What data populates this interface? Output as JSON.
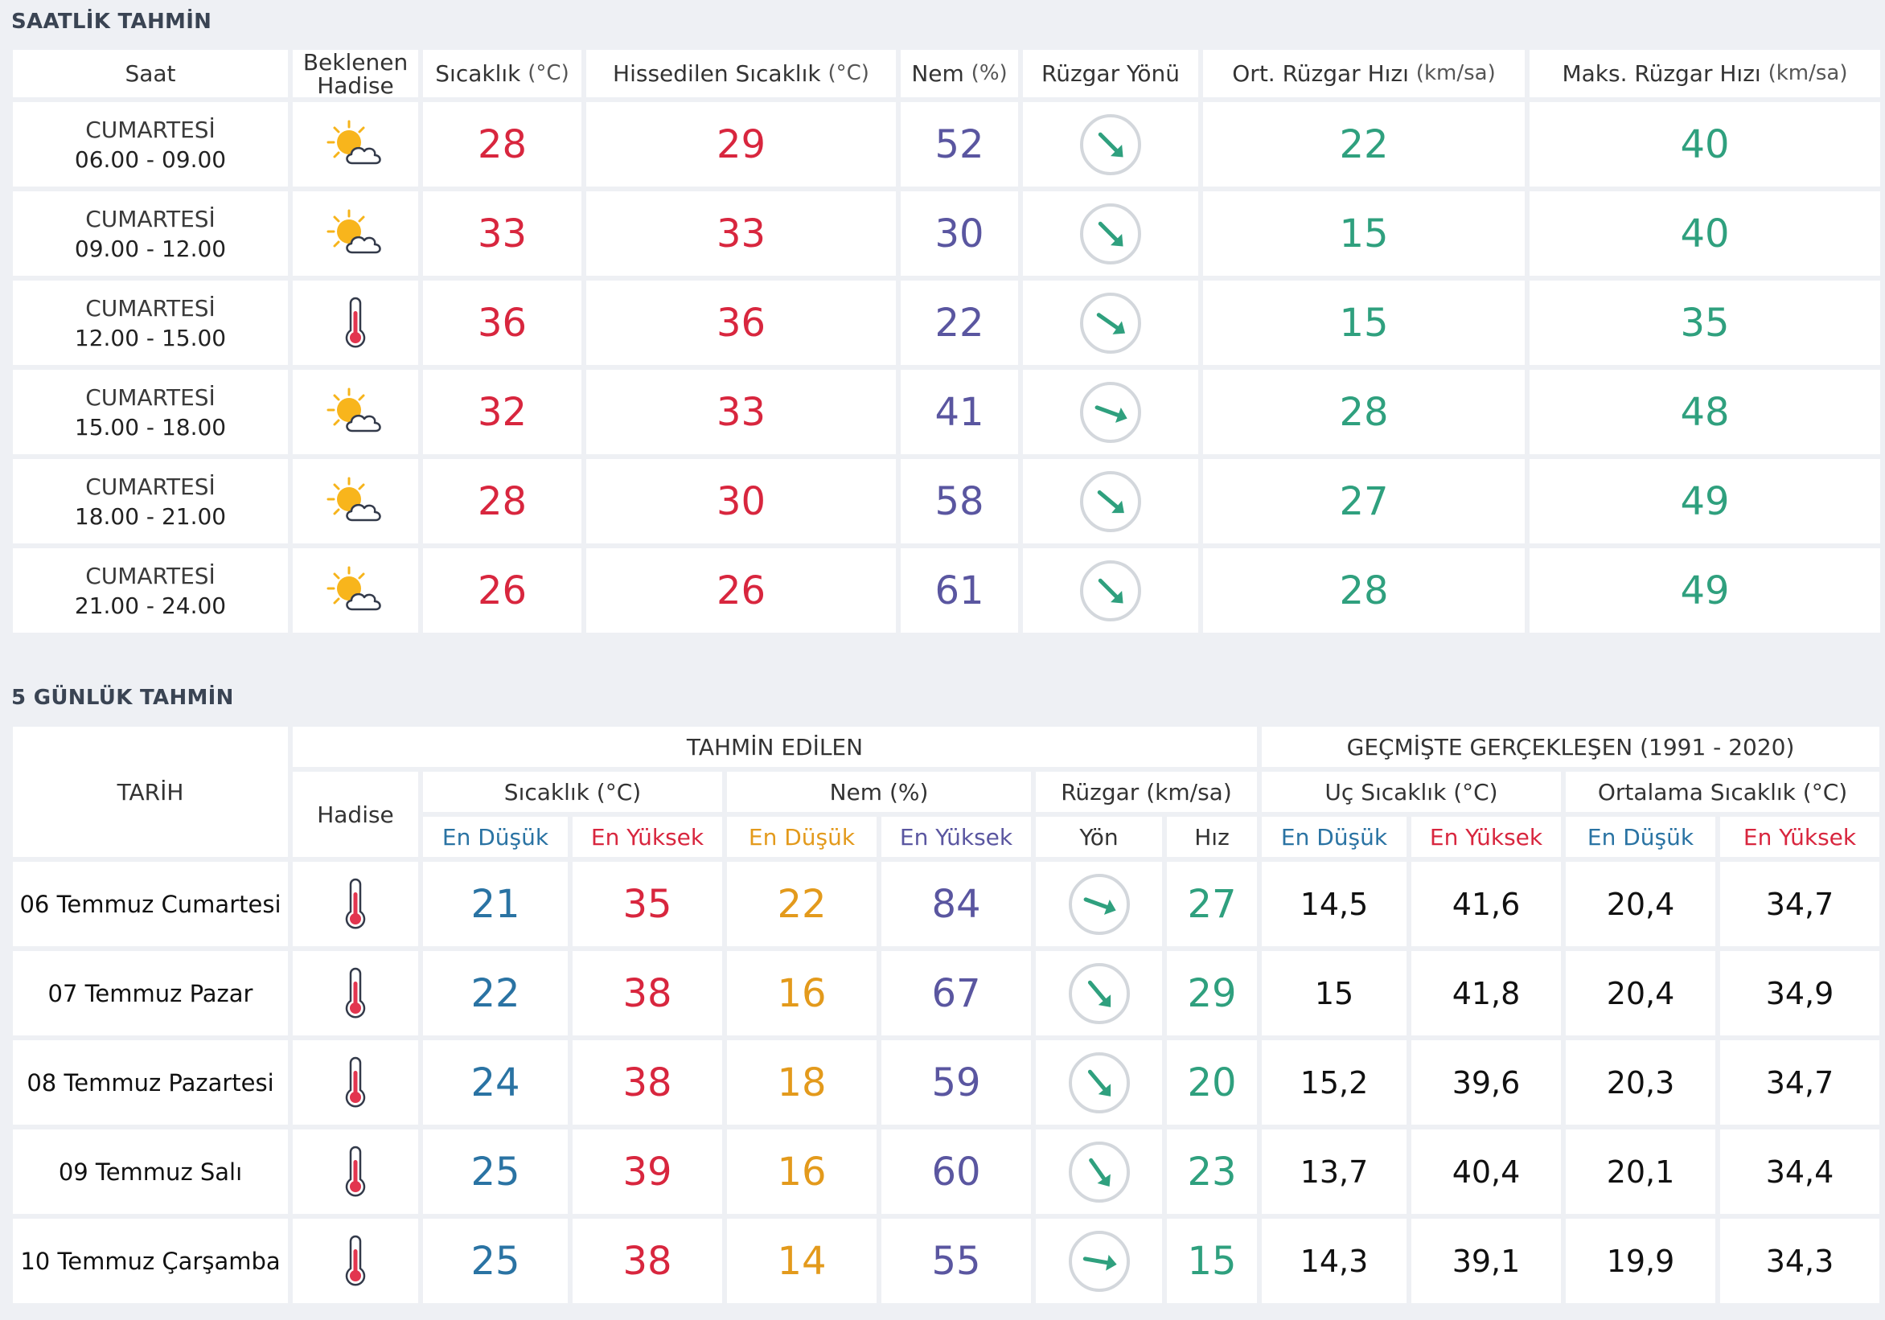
{
  "hourly": {
    "title": "SAATLİK TAHMİN",
    "headers": {
      "saat": "Saat",
      "hadise_line1": "Beklenen",
      "hadise_line2": "Hadise",
      "sicaklik": "Sıcaklık",
      "sicaklik_unit": "(°C)",
      "hissedilen": "Hissedilen Sıcaklık",
      "hissedilen_unit": "(°C)",
      "nem": "Nem",
      "nem_unit": "(%)",
      "ruzgar_yonu": "Rüzgar Yönü",
      "ort_ruzgar": "Ort. Rüzgar Hızı",
      "ort_ruzgar_unit": "(km/sa)",
      "maks_ruzgar": "Maks. Rüzgar Hızı",
      "maks_ruzgar_unit": "(km/sa)"
    },
    "rows": [
      {
        "day": "CUMARTESİ",
        "time": "06.00 - 09.00",
        "icon": "partly-cloudy-icon",
        "temp": "28",
        "feels": "29",
        "humidity": "52",
        "wind_dir_deg": 135,
        "avg_wind": "22",
        "max_wind": "40"
      },
      {
        "day": "CUMARTESİ",
        "time": "09.00 - 12.00",
        "icon": "partly-cloudy-icon",
        "temp": "33",
        "feels": "33",
        "humidity": "30",
        "wind_dir_deg": 135,
        "avg_wind": "15",
        "max_wind": "40"
      },
      {
        "day": "CUMARTESİ",
        "time": "12.00 - 15.00",
        "icon": "thermometer-icon",
        "temp": "36",
        "feels": "36",
        "humidity": "22",
        "wind_dir_deg": 125,
        "avg_wind": "15",
        "max_wind": "35"
      },
      {
        "day": "CUMARTESİ",
        "time": "15.00 - 18.00",
        "icon": "partly-cloudy-icon",
        "temp": "32",
        "feels": "33",
        "humidity": "41",
        "wind_dir_deg": 110,
        "avg_wind": "28",
        "max_wind": "48"
      },
      {
        "day": "CUMARTESİ",
        "time": "18.00 - 21.00",
        "icon": "partly-cloudy-icon",
        "temp": "28",
        "feels": "30",
        "humidity": "58",
        "wind_dir_deg": 130,
        "avg_wind": "27",
        "max_wind": "49"
      },
      {
        "day": "CUMARTESİ",
        "time": "21.00 - 24.00",
        "icon": "partly-cloudy-icon",
        "temp": "26",
        "feels": "26",
        "humidity": "61",
        "wind_dir_deg": 135,
        "avg_wind": "28",
        "max_wind": "49"
      }
    ]
  },
  "daily": {
    "title": "5 GÜNLÜK TAHMİN",
    "headers": {
      "tarih": "TARİH",
      "tahmin_edilen": "TAHMİN EDİLEN",
      "gecmiste": "GEÇMİŞTE GERÇEKLEŞEN (1991 - 2020)",
      "hadise": "Hadise",
      "sicaklik": "Sıcaklık (°C)",
      "nem": "Nem (%)",
      "ruzgar": "Rüzgar (km/sa)",
      "uc_sicaklik": "Uç Sıcaklık (°C)",
      "ortalama_sicaklik": "Ortalama Sıcaklık (°C)",
      "en_dusuk": "En Düşük",
      "en_yuksek": "En Yüksek",
      "yon": "Yön",
      "hiz": "Hız"
    },
    "rows": [
      {
        "date": "06 Temmuz Cumartesi",
        "icon": "thermometer-icon",
        "temp_min": "21",
        "temp_max": "35",
        "hum_min": "22",
        "hum_max": "84",
        "wind_dir_deg": 110,
        "wind_speed": "27",
        "ext_min": "14,5",
        "ext_max": "41,6",
        "avg_min": "20,4",
        "avg_max": "34,7"
      },
      {
        "date": "07 Temmuz Pazar",
        "icon": "thermometer-icon",
        "temp_min": "22",
        "temp_max": "38",
        "hum_min": "16",
        "hum_max": "67",
        "wind_dir_deg": 140,
        "wind_speed": "29",
        "ext_min": "15",
        "ext_max": "41,8",
        "avg_min": "20,4",
        "avg_max": "34,9"
      },
      {
        "date": "08 Temmuz Pazartesi",
        "icon": "thermometer-icon",
        "temp_min": "24",
        "temp_max": "38",
        "hum_min": "18",
        "hum_max": "59",
        "wind_dir_deg": 140,
        "wind_speed": "20",
        "ext_min": "15,2",
        "ext_max": "39,6",
        "avg_min": "20,3",
        "avg_max": "34,7"
      },
      {
        "date": "09 Temmuz Salı",
        "icon": "thermometer-icon",
        "temp_min": "25",
        "temp_max": "39",
        "hum_min": "16",
        "hum_max": "60",
        "wind_dir_deg": 145,
        "wind_speed": "23",
        "ext_min": "13,7",
        "ext_max": "40,4",
        "avg_min": "20,1",
        "avg_max": "34,4"
      },
      {
        "date": "10 Temmuz Çarşamba",
        "icon": "thermometer-icon",
        "temp_min": "25",
        "temp_max": "38",
        "hum_min": "14",
        "hum_max": "55",
        "wind_dir_deg": 100,
        "wind_speed": "15",
        "ext_min": "14,3",
        "ext_max": "39,1",
        "avg_min": "19,9",
        "avg_max": "34,3"
      }
    ]
  },
  "colors": {
    "temp": "#d8263e",
    "humidity": "#5a56a0",
    "wind": "#2fa07e",
    "low_temp": "#2a73a3",
    "low_humidity": "#e39a1c"
  }
}
